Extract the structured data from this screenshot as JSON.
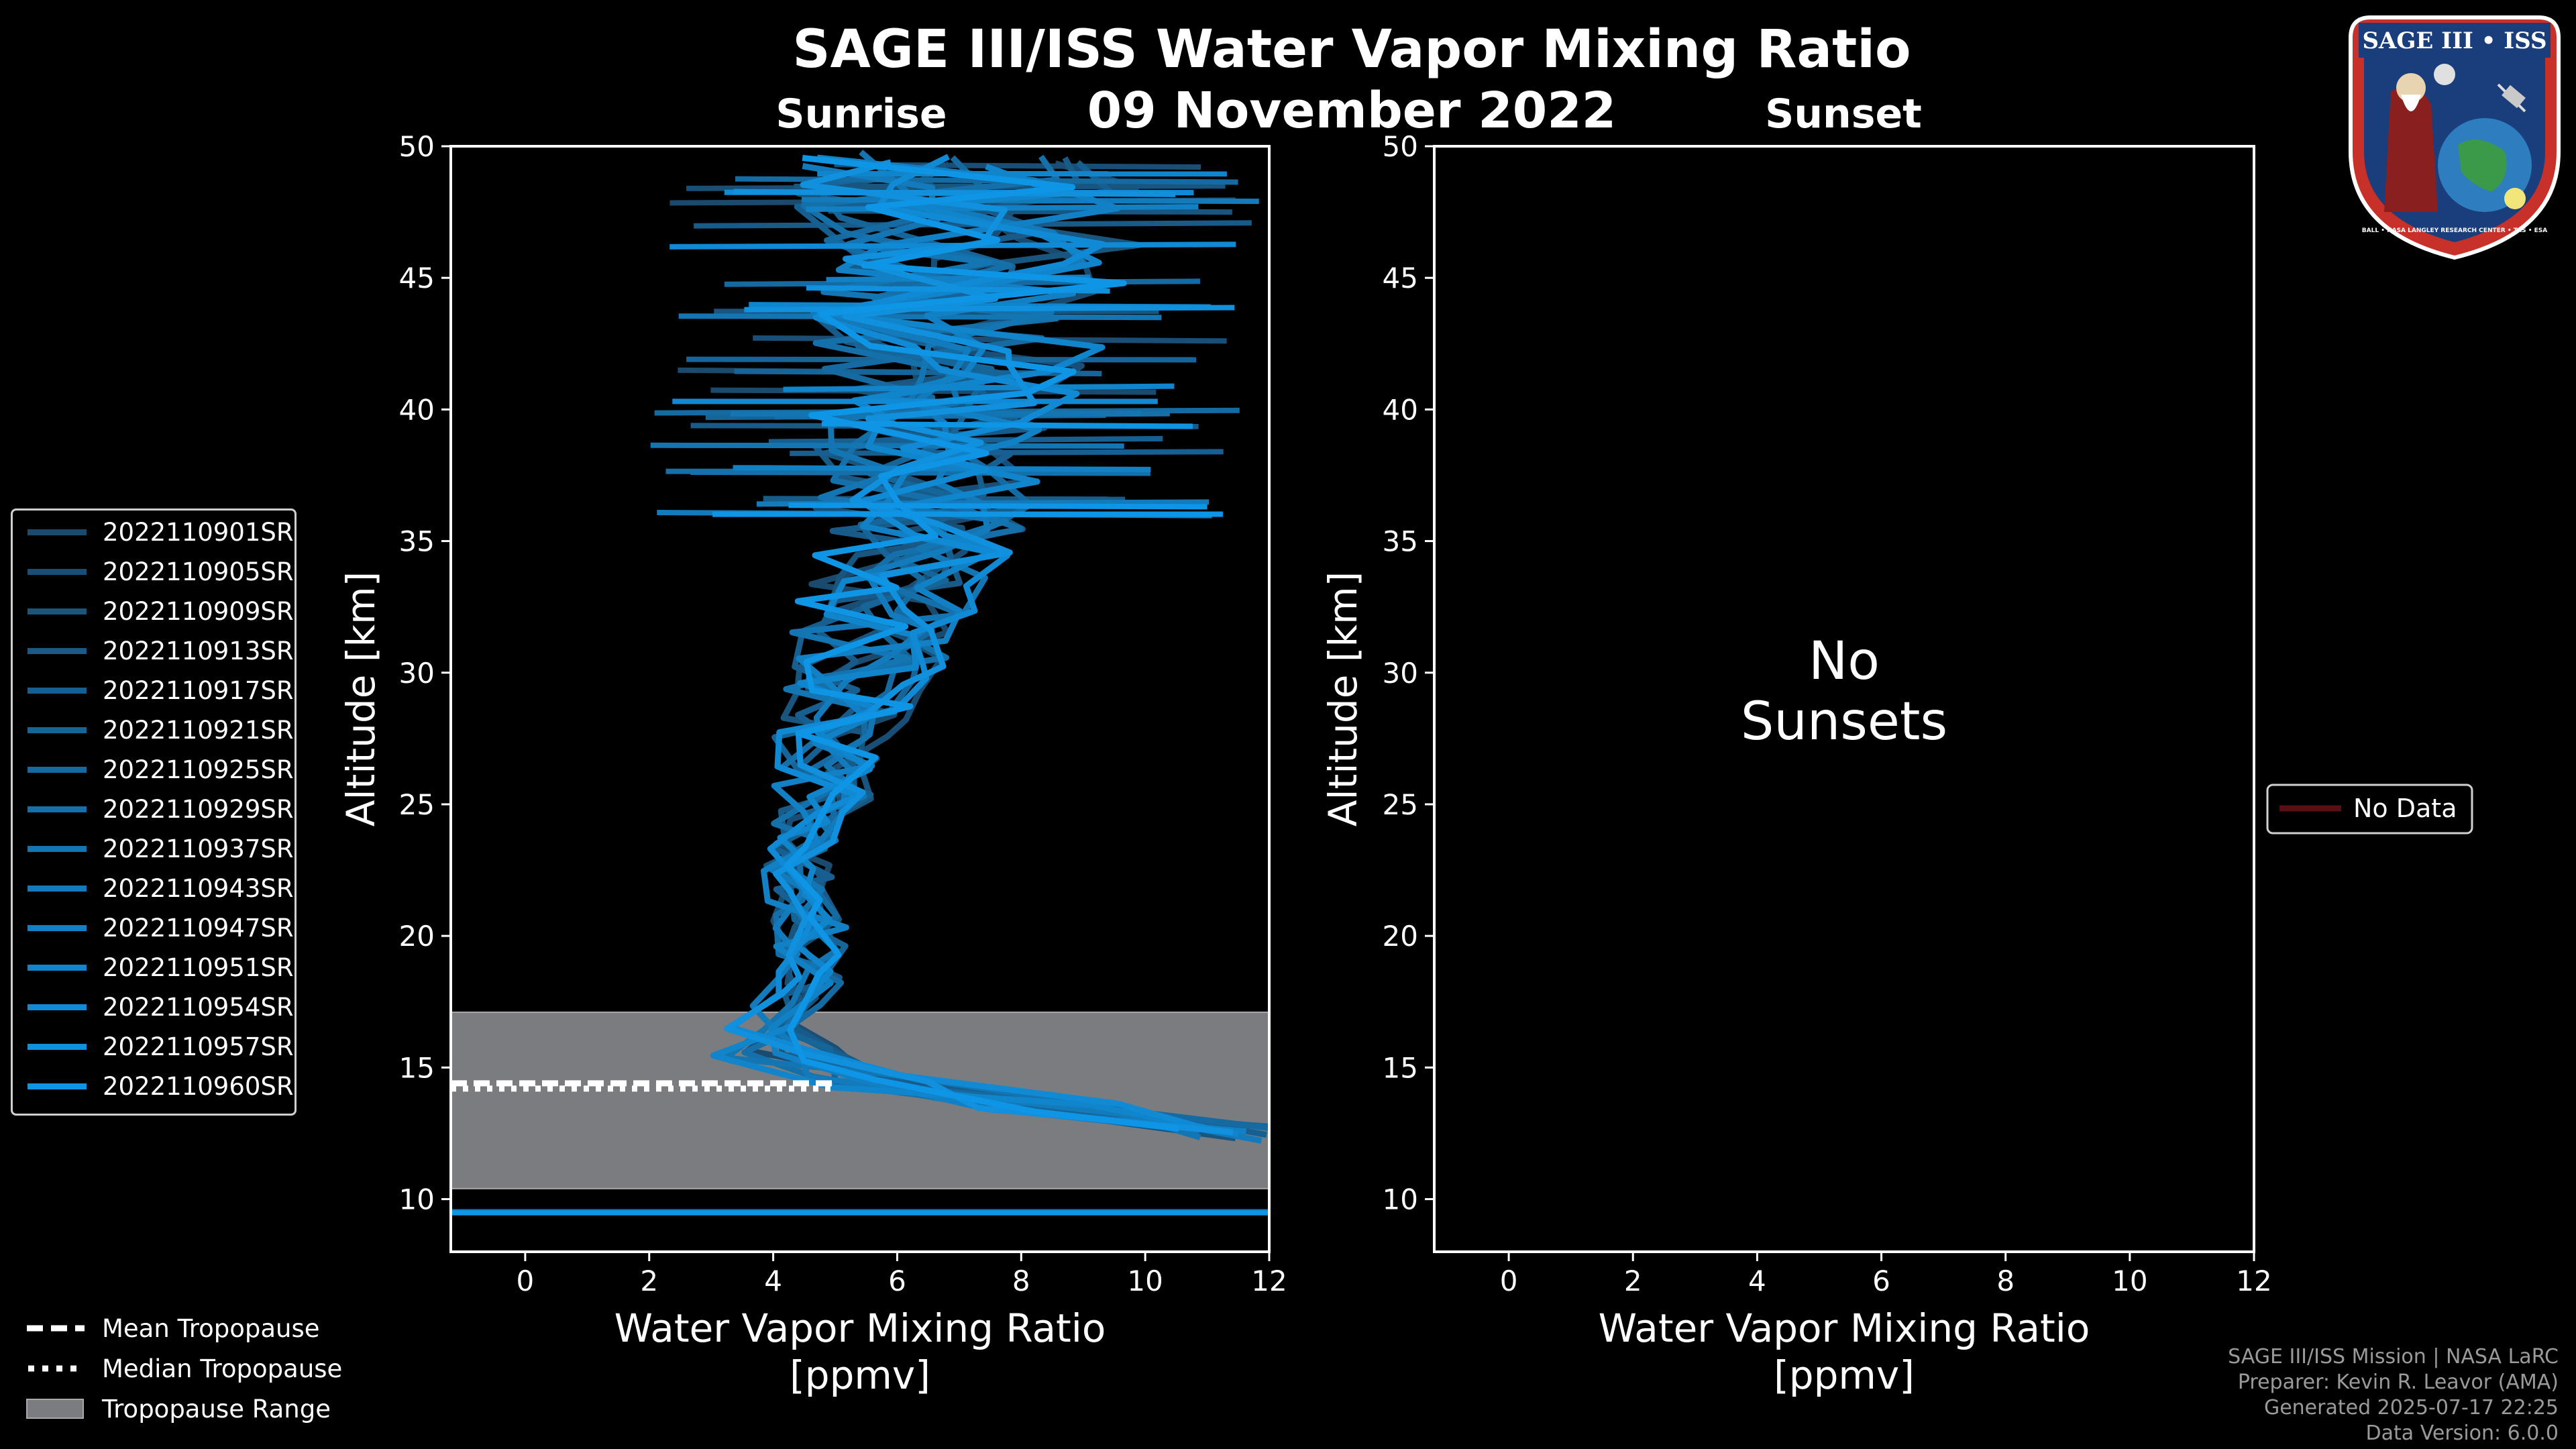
{
  "figure": {
    "title": "SAGE III/ISS Water Vapor Mixing Ratio",
    "date": "09 November 2022",
    "left_panel_title": "Sunrise",
    "right_panel_title": "Sunset",
    "no_data_text_line1": "No",
    "no_data_text_line2": "Sunsets",
    "no_data_legend": "No Data"
  },
  "legend_bottom": {
    "mean": "Mean Tropopause",
    "median": "Median Tropopause",
    "range": "Tropopause Range"
  },
  "footer": {
    "line1": "SAGE III/ISS Mission | NASA LaRC",
    "line2": "Preparer: Kevin R. Leavor (AMA)",
    "line3": "Generated 2025-07-17 22:25",
    "line4": "Data Version: 6.0.0"
  },
  "logo": {
    "text": "SAGE III • ISS",
    "ring_text": "BALL • NASA LANGLEY RESEARCH CENTER • TAS • ESA"
  },
  "colors": {
    "background": "#000000",
    "profile_dark": "#1a4a6e",
    "profile_light": "#0f95e6",
    "tropopause_range": "#7a7c80",
    "no_data": "#5a0f12"
  },
  "chart_data": [
    {
      "type": "line",
      "title": "Sunrise",
      "xlabel": "Water Vapor Mixing Ratio [ppmv]",
      "xlabel_line1": "Water Vapor Mixing Ratio",
      "xlabel_line2": "[ppmv]",
      "ylabel": "Altitude [km]",
      "xlim": [
        -1.2,
        12
      ],
      "ylim": [
        8,
        50
      ],
      "xticks": [
        0,
        2,
        4,
        6,
        8,
        10,
        12
      ],
      "yticks": [
        10,
        15,
        20,
        25,
        30,
        35,
        40,
        45,
        50
      ],
      "tropopause": {
        "range": [
          10.4,
          17.1
        ],
        "mean": 14.4,
        "median": 14.2
      },
      "series_names": [
        "2022110901SR",
        "2022110905SR",
        "2022110909SR",
        "2022110913SR",
        "2022110917SR",
        "2022110921SR",
        "2022110925SR",
        "2022110929SR",
        "2022110937SR",
        "2022110943SR",
        "2022110947SR",
        "2022110951SR",
        "2022110954SR",
        "2022110957SR",
        "2022110960SR"
      ],
      "template_profile": {
        "altitude": [
          12.5,
          13.5,
          14.5,
          15.5,
          16.5,
          17.5,
          18.5,
          19.5,
          20.5,
          21.5,
          22.5,
          23.5,
          24.5,
          25.5,
          26.5,
          27.5,
          28.5,
          29.5,
          30.5,
          31.5,
          32.5,
          33.5,
          34.5,
          35.5,
          36.5,
          37.5,
          38.5,
          39.5,
          40.5,
          41.5,
          42.5,
          43.5,
          44.5,
          45.5,
          46.5,
          47.5,
          48.5,
          49.5
        ],
        "mixing_ratio": [
          11.5,
          8.5,
          5.5,
          4.0,
          3.8,
          4.2,
          4.5,
          4.6,
          4.6,
          4.5,
          4.4,
          4.5,
          4.6,
          4.8,
          4.9,
          5.0,
          5.2,
          5.4,
          5.5,
          5.6,
          5.8,
          6.0,
          6.2,
          6.3,
          6.4,
          6.5,
          6.6,
          6.7,
          6.8,
          6.9,
          7.0,
          7.0,
          7.1,
          7.1,
          7.2,
          7.2,
          7.3,
          7.3
        ]
      }
    },
    {
      "type": "line",
      "title": "Sunset",
      "xlabel": "Water Vapor Mixing Ratio [ppmv]",
      "xlabel_line1": "Water Vapor Mixing Ratio",
      "xlabel_line2": "[ppmv]",
      "ylabel": "Altitude [km]",
      "xlim": [
        -1.2,
        12
      ],
      "ylim": [
        8,
        50
      ],
      "xticks": [
        0,
        2,
        4,
        6,
        8,
        10,
        12
      ],
      "yticks": [
        10,
        15,
        20,
        25,
        30,
        35,
        40,
        45,
        50
      ],
      "series_names": [
        "No Data"
      ],
      "annotation": "No Sunsets"
    }
  ]
}
